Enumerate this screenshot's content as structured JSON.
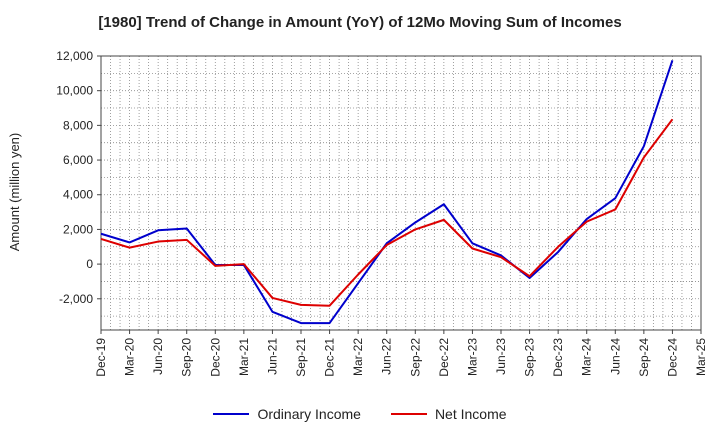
{
  "chart_data": {
    "type": "line",
    "title": "[1980]  Trend of Change in Amount (YoY) of 12Mo Moving Sum of Incomes",
    "ylabel": "Amount (million yen)",
    "xlabel": "",
    "ylim": [
      -3800,
      12000
    ],
    "yticks": [
      12000,
      10000,
      8000,
      6000,
      4000,
      2000,
      0,
      -2000
    ],
    "ytick_labels": [
      "12,000",
      "10,000",
      "8,000",
      "6,000",
      "4,000",
      "2,000",
      "0",
      "-2,000"
    ],
    "categories": [
      "Dec-19",
      "Mar-20",
      "Jun-20",
      "Sep-20",
      "Dec-20",
      "Mar-21",
      "Jun-21",
      "Sep-21",
      "Dec-21",
      "Mar-22",
      "Jun-22",
      "Sep-22",
      "Dec-22",
      "Mar-23",
      "Jun-23",
      "Sep-23",
      "Dec-23",
      "Mar-24",
      "Jun-24",
      "Sep-24",
      "Dec-24",
      "Mar-25"
    ],
    "grid": true,
    "legend_position": "bottom",
    "series": [
      {
        "name": "Ordinary Income",
        "color": "#0000cc",
        "values": [
          1750,
          1250,
          1950,
          2050,
          -50,
          -50,
          -2750,
          -3400,
          -3400,
          -1100,
          1200,
          2400,
          3450,
          1200,
          500,
          -800,
          700,
          2600,
          3800,
          6800,
          11750,
          null
        ]
      },
      {
        "name": "Net Income",
        "color": "#dd0000",
        "values": [
          1450,
          950,
          1300,
          1400,
          -100,
          0,
          -1950,
          -2350,
          -2400,
          -600,
          1100,
          2000,
          2550,
          900,
          400,
          -700,
          1000,
          2450,
          3150,
          6150,
          8350,
          null
        ]
      }
    ]
  }
}
